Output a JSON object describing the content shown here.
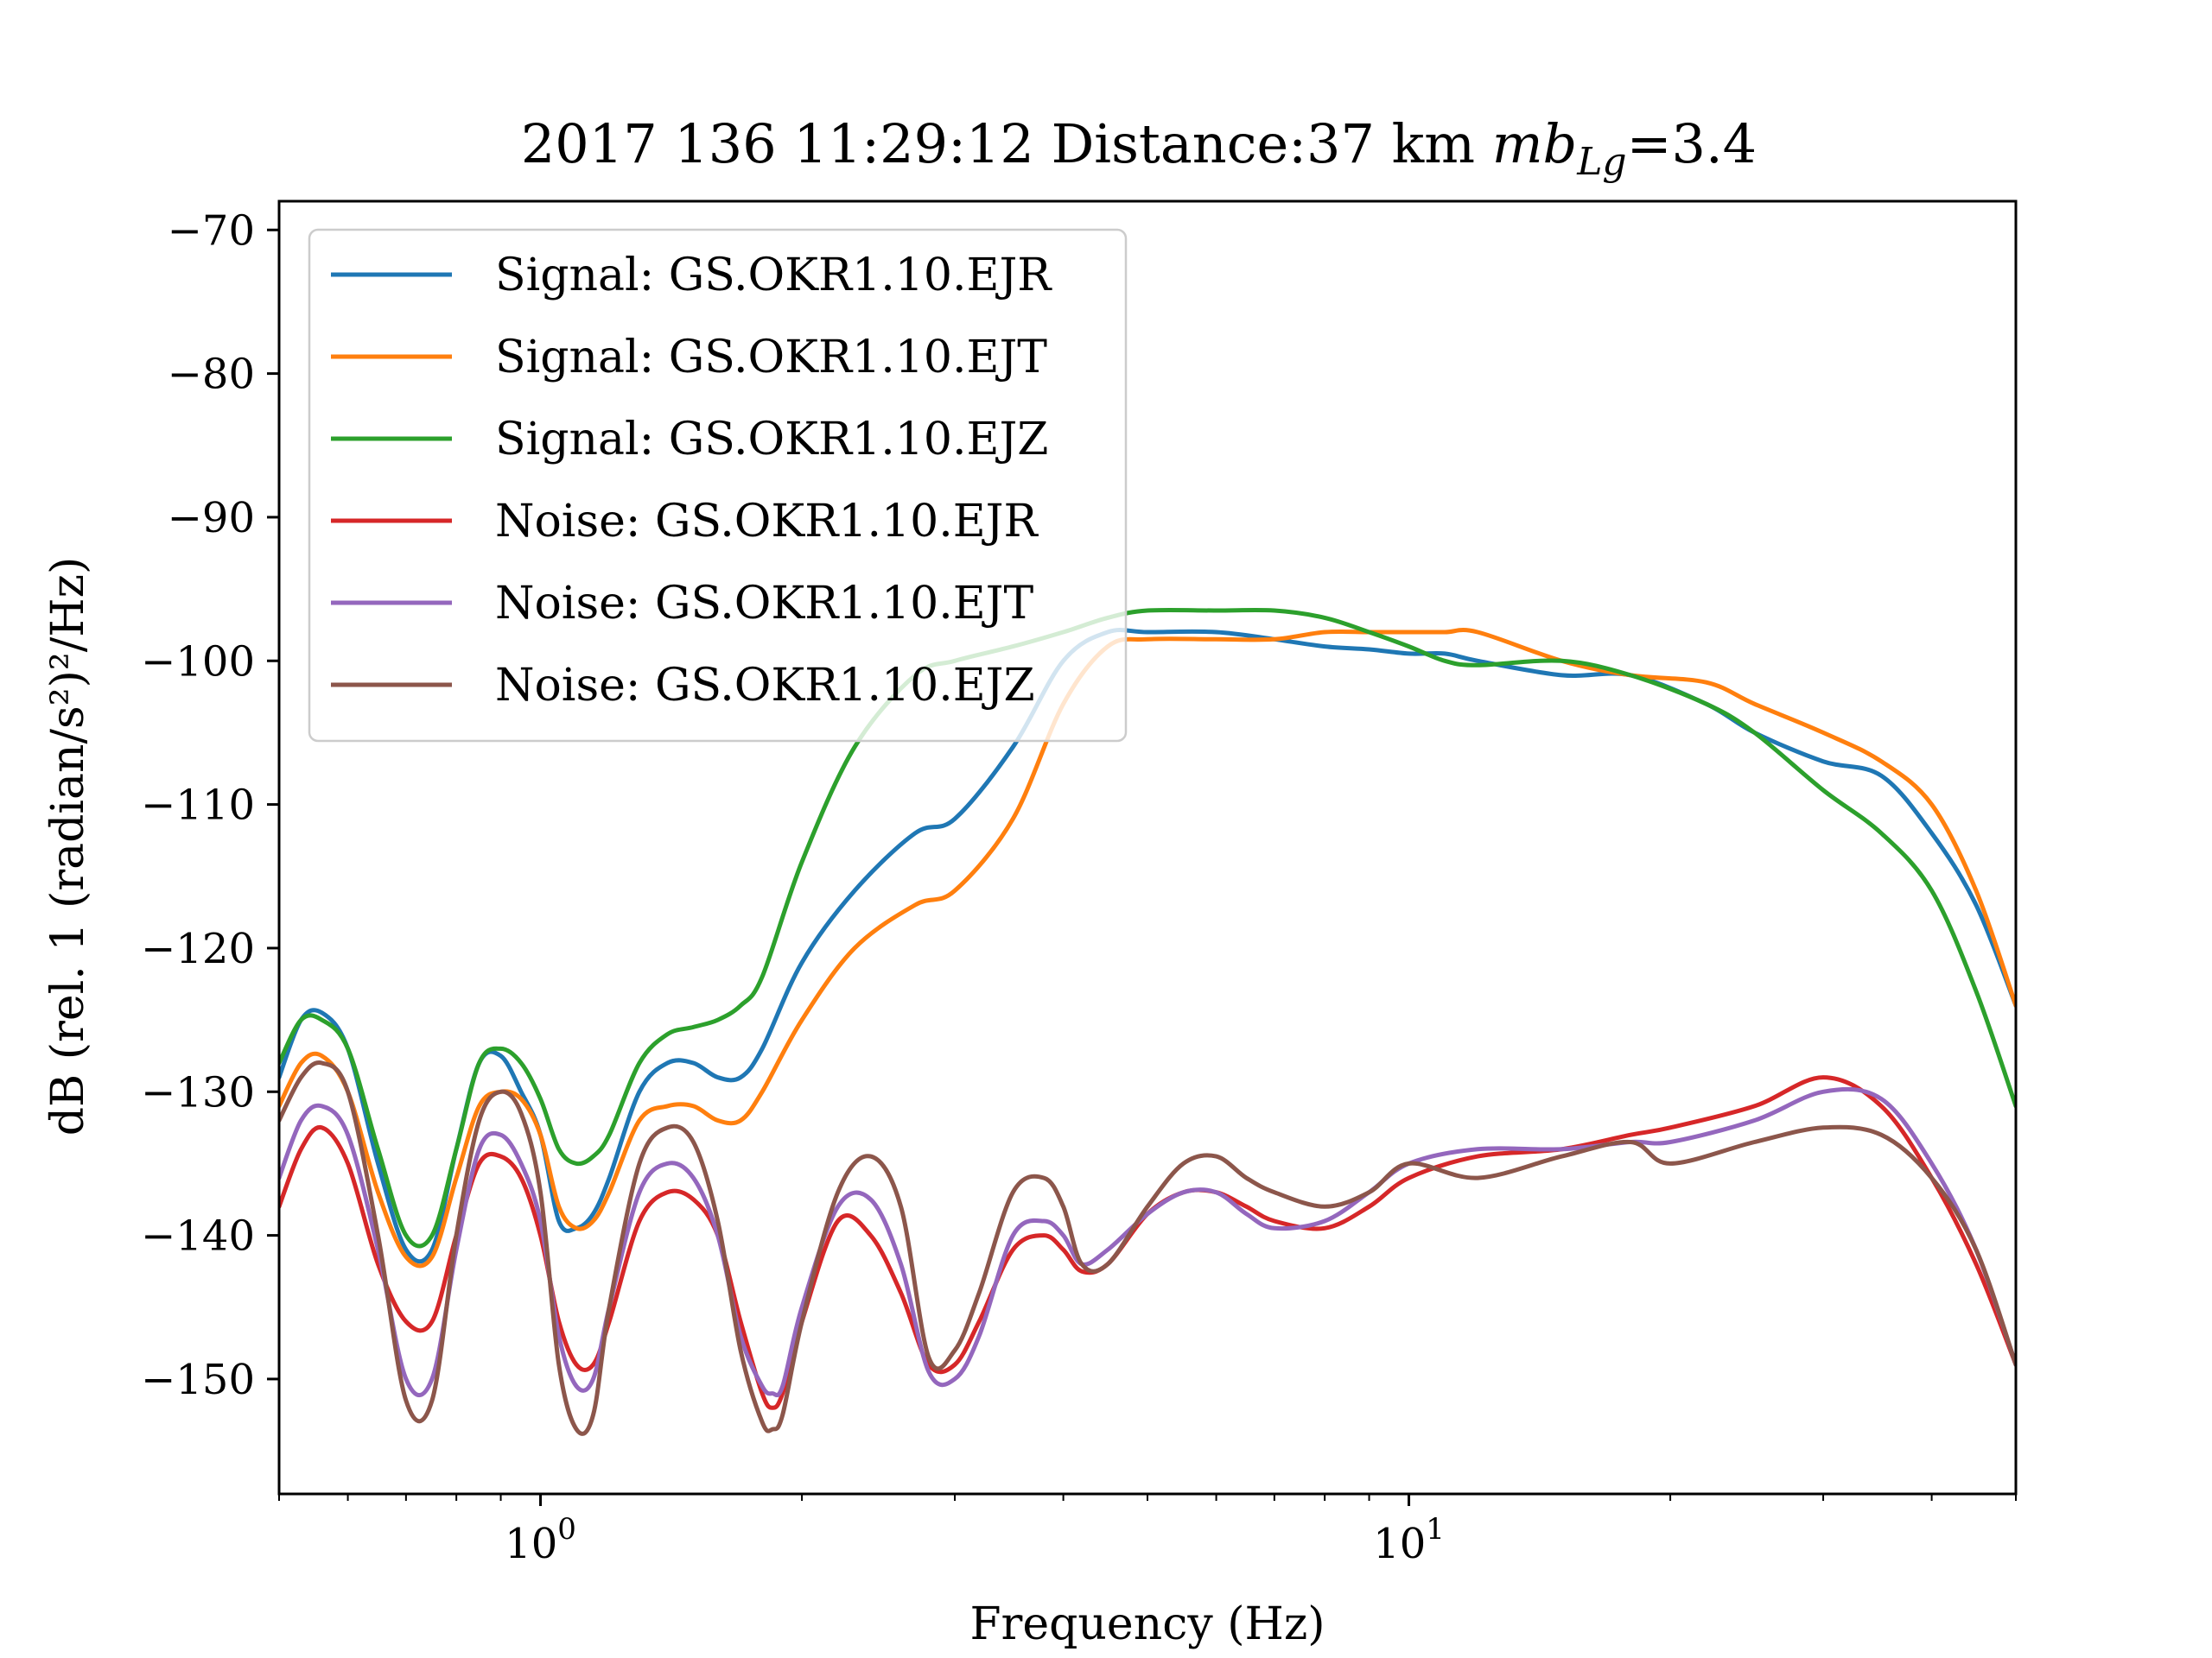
{
  "chart_data": {
    "type": "line",
    "title": "2017 136 11:29:12 Distance:37 km mb_Lg=3.4",
    "title_parts": {
      "prefix": "2017 136 11:29:12 Distance:37 km ",
      "mag_symbol": "mb",
      "mag_sub": "Lg",
      "mag_value": "=3.4"
    },
    "xlabel": "Frequency (Hz)",
    "ylabel": "dB (rel. 1 (radian/s²)²/Hz)",
    "xscale": "log",
    "xlim": [
      0.5,
      50
    ],
    "ylim": [
      -158,
      -68
    ],
    "x_ticks": [
      {
        "value": 1,
        "base": "10",
        "exp": "0"
      },
      {
        "value": 10,
        "base": "10",
        "exp": "1"
      }
    ],
    "y_ticks": [
      {
        "value": -70,
        "label": "−70"
      },
      {
        "value": -80,
        "label": "−80"
      },
      {
        "value": -90,
        "label": "−90"
      },
      {
        "value": -100,
        "label": "−100"
      },
      {
        "value": -110,
        "label": "−110"
      },
      {
        "value": -120,
        "label": "−120"
      },
      {
        "value": -130,
        "label": "−130"
      },
      {
        "value": -140,
        "label": "−140"
      },
      {
        "value": -150,
        "label": "−150"
      }
    ],
    "grid": false,
    "legend_position": "top-left",
    "series": [
      {
        "name": "Signal: GS.OKR1.10.EJR",
        "color": "#1f77b4",
        "x": [
          0.5,
          0.53,
          0.56,
          0.6,
          0.65,
          0.7,
          0.75,
          0.8,
          0.85,
          0.9,
          0.95,
          1.0,
          1.05,
          1.1,
          1.15,
          1.2,
          1.3,
          1.4,
          1.5,
          1.6,
          1.7,
          1.8,
          2.0,
          2.3,
          2.7,
          3.0,
          3.5,
          4.0,
          4.5,
          5.0,
          6.0,
          7.0,
          8.0,
          9.0,
          10.0,
          11.0,
          12.0,
          15.0,
          18.0,
          22.0,
          25.0,
          30.0,
          35.0,
          40.0,
          45.0,
          50.0
        ],
        "y": [
          -129,
          -125,
          -124.5,
          -127,
          -135,
          -141,
          -141,
          -134,
          -128,
          -127.5,
          -130,
          -133,
          -139,
          -139.5,
          -138.5,
          -136,
          -130,
          -128,
          -128,
          -129,
          -129,
          -127,
          -121,
          -116,
          -112,
          -111,
          -106,
          -100,
          -98,
          -98,
          -98,
          -98.5,
          -99,
          -99.2,
          -99.5,
          -99.5,
          -100,
          -101,
          -101,
          -103,
          -105,
          -107,
          -108,
          -112,
          -117,
          -124
        ]
      },
      {
        "name": "Signal: GS.OKR1.10.EJT",
        "color": "#ff7f0e",
        "x": [
          0.5,
          0.53,
          0.56,
          0.6,
          0.65,
          0.7,
          0.75,
          0.8,
          0.85,
          0.9,
          0.95,
          1.0,
          1.05,
          1.1,
          1.15,
          1.2,
          1.3,
          1.4,
          1.5,
          1.6,
          1.7,
          1.8,
          2.0,
          2.3,
          2.7,
          3.0,
          3.5,
          4.0,
          4.5,
          5.0,
          6.0,
          7.0,
          8.0,
          9.0,
          10.0,
          11.0,
          12.0,
          15.0,
          18.0,
          22.0,
          25.0,
          30.0,
          35.0,
          40.0,
          45.0,
          50.0
        ],
        "y": [
          -131,
          -128,
          -127.5,
          -130,
          -137,
          -141.5,
          -141.5,
          -136,
          -131,
          -130,
          -130.5,
          -133,
          -138,
          -139.5,
          -139,
          -137,
          -132,
          -131,
          -131,
          -132,
          -132,
          -130,
          -125,
          -120,
          -117,
          -116,
          -111,
          -103,
          -99,
          -98.5,
          -98.5,
          -98.5,
          -98,
          -98,
          -98,
          -98,
          -98,
          -100,
          -101,
          -101.5,
          -103,
          -105,
          -107,
          -110,
          -116,
          -124
        ]
      },
      {
        "name": "Signal: GS.OKR1.10.EJZ",
        "color": "#2ca02c",
        "x": [
          0.5,
          0.53,
          0.56,
          0.6,
          0.65,
          0.7,
          0.75,
          0.8,
          0.85,
          0.9,
          0.95,
          1.0,
          1.05,
          1.1,
          1.15,
          1.2,
          1.3,
          1.4,
          1.5,
          1.6,
          1.7,
          1.8,
          2.0,
          2.3,
          2.7,
          3.0,
          3.5,
          4.0,
          4.5,
          5.0,
          6.0,
          7.0,
          8.0,
          9.0,
          10.0,
          11.0,
          12.0,
          15.0,
          18.0,
          22.0,
          25.0,
          30.0,
          35.0,
          40.0,
          45.0,
          50.0
        ],
        "y": [
          -128,
          -125,
          -125,
          -127,
          -134,
          -140,
          -140,
          -134,
          -128,
          -127,
          -128,
          -130.5,
          -134,
          -135,
          -134.5,
          -133,
          -128,
          -126,
          -125.5,
          -125,
          -124,
          -122,
          -114,
          -106,
          -101,
          -100,
          -99,
          -98,
          -97,
          -96.5,
          -96.5,
          -96.5,
          -97,
          -98,
          -99,
          -100,
          -100.3,
          -100,
          -101,
          -103,
          -105,
          -109,
          -112,
          -116,
          -123,
          -131
        ]
      },
      {
        "name": "Noise: GS.OKR1.10.EJR",
        "color": "#d62728",
        "x": [
          0.5,
          0.53,
          0.56,
          0.6,
          0.65,
          0.7,
          0.75,
          0.8,
          0.85,
          0.9,
          0.95,
          1.0,
          1.05,
          1.1,
          1.15,
          1.2,
          1.3,
          1.4,
          1.5,
          1.6,
          1.7,
          1.8,
          1.85,
          1.9,
          2.0,
          2.2,
          2.4,
          2.6,
          2.8,
          3.0,
          3.2,
          3.5,
          3.8,
          4.0,
          4.2,
          4.5,
          5.0,
          5.5,
          6.0,
          6.5,
          7.0,
          8.0,
          9.0,
          10.0,
          12.0,
          15.0,
          18.0,
          20.0,
          25.0,
          30.0,
          35.0,
          40.0,
          45.0,
          50.0
        ],
        "y": [
          -138,
          -134,
          -132.5,
          -135,
          -142,
          -146,
          -146,
          -140,
          -135,
          -134.5,
          -136,
          -140,
          -146,
          -149,
          -149,
          -146,
          -139,
          -137,
          -137.5,
          -140,
          -146,
          -151,
          -152,
          -151,
          -146,
          -139,
          -140,
          -144,
          -149,
          -149,
          -146,
          -141,
          -140,
          -141,
          -142.5,
          -142,
          -138.5,
          -137,
          -137,
          -138,
          -139,
          -139.5,
          -138,
          -136,
          -134.5,
          -134,
          -133,
          -132.5,
          -131,
          -129,
          -131,
          -136,
          -142,
          -149
        ]
      },
      {
        "name": "Noise: GS.OKR1.10.EJT",
        "color": "#9467bd",
        "x": [
          0.5,
          0.53,
          0.56,
          0.6,
          0.65,
          0.7,
          0.75,
          0.8,
          0.85,
          0.9,
          0.95,
          1.0,
          1.05,
          1.1,
          1.15,
          1.2,
          1.3,
          1.4,
          1.5,
          1.6,
          1.7,
          1.8,
          1.85,
          1.9,
          2.0,
          2.2,
          2.4,
          2.6,
          2.8,
          3.0,
          3.2,
          3.5,
          3.8,
          4.0,
          4.2,
          4.5,
          5.0,
          5.5,
          6.0,
          6.5,
          7.0,
          8.0,
          9.0,
          10.0,
          12.0,
          15.0,
          18.0,
          20.0,
          25.0,
          30.0,
          35.0,
          40.0,
          45.0,
          50.0
        ],
        "y": [
          -136,
          -132,
          -131,
          -133,
          -141,
          -150,
          -150,
          -141,
          -134,
          -133,
          -135,
          -139,
          -147,
          -150.5,
          -150,
          -145,
          -137,
          -135,
          -136,
          -140,
          -147,
          -150.5,
          -151,
          -150.5,
          -145,
          -138,
          -137.5,
          -142,
          -149.5,
          -150,
          -147,
          -140,
          -139,
          -140,
          -142,
          -141,
          -138.5,
          -137,
          -137,
          -138.5,
          -139.5,
          -139,
          -137,
          -135,
          -134,
          -134,
          -133.5,
          -133.5,
          -132,
          -130,
          -130.5,
          -135,
          -141,
          -149
        ]
      },
      {
        "name": "Noise: GS.OKR1.10.EJZ",
        "color": "#8c564b",
        "x": [
          0.5,
          0.53,
          0.56,
          0.6,
          0.65,
          0.7,
          0.75,
          0.8,
          0.85,
          0.9,
          0.95,
          1.0,
          1.05,
          1.1,
          1.15,
          1.2,
          1.3,
          1.4,
          1.5,
          1.6,
          1.7,
          1.8,
          1.85,
          1.9,
          2.0,
          2.2,
          2.4,
          2.6,
          2.8,
          3.0,
          3.2,
          3.5,
          3.8,
          4.0,
          4.2,
          4.5,
          5.0,
          5.5,
          6.0,
          6.5,
          7.0,
          8.0,
          9.0,
          10.0,
          12.0,
          15.0,
          18.0,
          20.0,
          25.0,
          30.0,
          35.0,
          40.0,
          45.0,
          50.0
        ],
        "y": [
          -132,
          -129,
          -128,
          -130,
          -140,
          -151.5,
          -151.5,
          -140,
          -132,
          -130,
          -131.5,
          -137,
          -149,
          -153.5,
          -152.5,
          -145,
          -135,
          -132.5,
          -133.5,
          -139,
          -148,
          -153,
          -153.5,
          -152.5,
          -146,
          -137,
          -134.5,
          -138,
          -148.5,
          -148,
          -144,
          -137,
          -136,
          -138,
          -142,
          -142,
          -138,
          -135,
          -134.5,
          -136,
          -137,
          -138,
          -137,
          -135,
          -136,
          -134.5,
          -133.5,
          -135,
          -133.5,
          -132.5,
          -133,
          -136,
          -141,
          -149
        ]
      }
    ]
  }
}
